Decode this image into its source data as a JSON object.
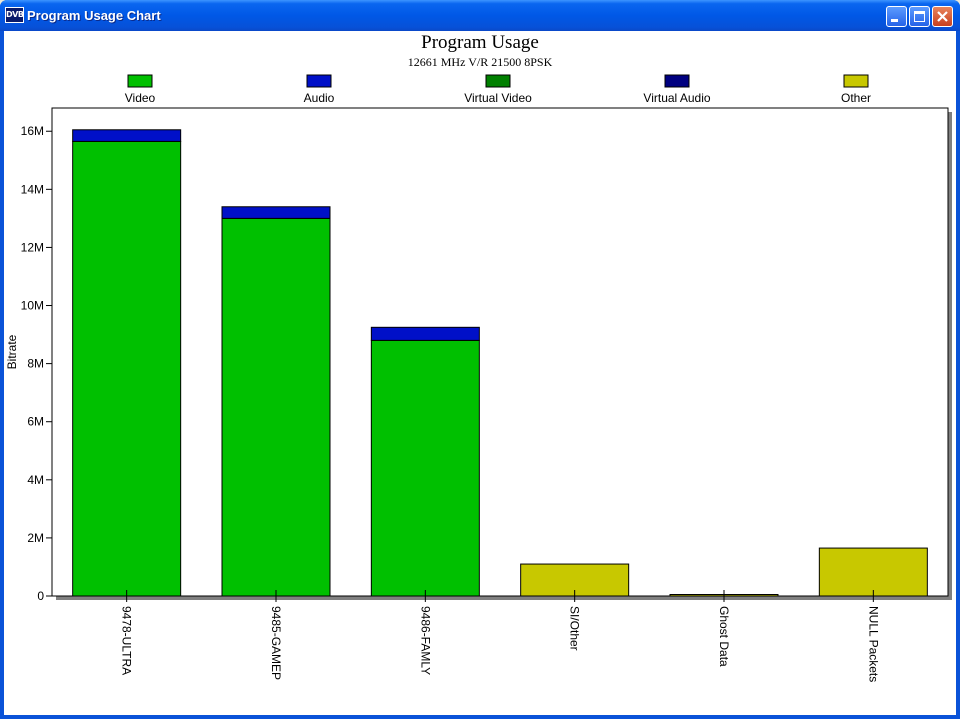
{
  "window": {
    "title": "Program Usage Chart",
    "icon_text": "DVB",
    "icon": "dvb-app-icon",
    "buttons": [
      "minimize-icon",
      "maximize-icon",
      "close-icon"
    ]
  },
  "chart_data": {
    "type": "bar",
    "stacked": true,
    "title": "Program Usage",
    "subtitle": "12661 MHz V/R 21500 8PSK",
    "xlabel": "",
    "ylabel": "Bitrate",
    "ylim": [
      0,
      16.8
    ],
    "yticks": [
      0,
      2,
      4,
      6,
      8,
      10,
      12,
      14,
      16
    ],
    "ytick_labels": [
      "0",
      "2M",
      "4M",
      "6M",
      "8M",
      "10M",
      "12M",
      "14M",
      "16M"
    ],
    "grid": false,
    "legend_position": "top",
    "categories": [
      "9478-ULTRA",
      "9485-GAMEP",
      "9486-FAMLY",
      "SI/Other",
      "Ghost Data",
      "NULL Packets"
    ],
    "series": [
      {
        "name": "Video",
        "color": "#00c000",
        "values": [
          15.65,
          13.0,
          8.8,
          0,
          0,
          0
        ]
      },
      {
        "name": "Audio",
        "color": "#0010c8",
        "values": [
          0.4,
          0.4,
          0.45,
          0,
          0,
          0
        ]
      },
      {
        "name": "Virtual Video",
        "color": "#008000",
        "values": [
          0,
          0,
          0,
          0,
          0,
          0
        ]
      },
      {
        "name": "Virtual Audio",
        "color": "#000080",
        "values": [
          0,
          0,
          0,
          0,
          0,
          0
        ]
      },
      {
        "name": "Other",
        "color": "#c8c800",
        "values": [
          0,
          0,
          0,
          1.1,
          0.05,
          1.65
        ]
      }
    ]
  }
}
